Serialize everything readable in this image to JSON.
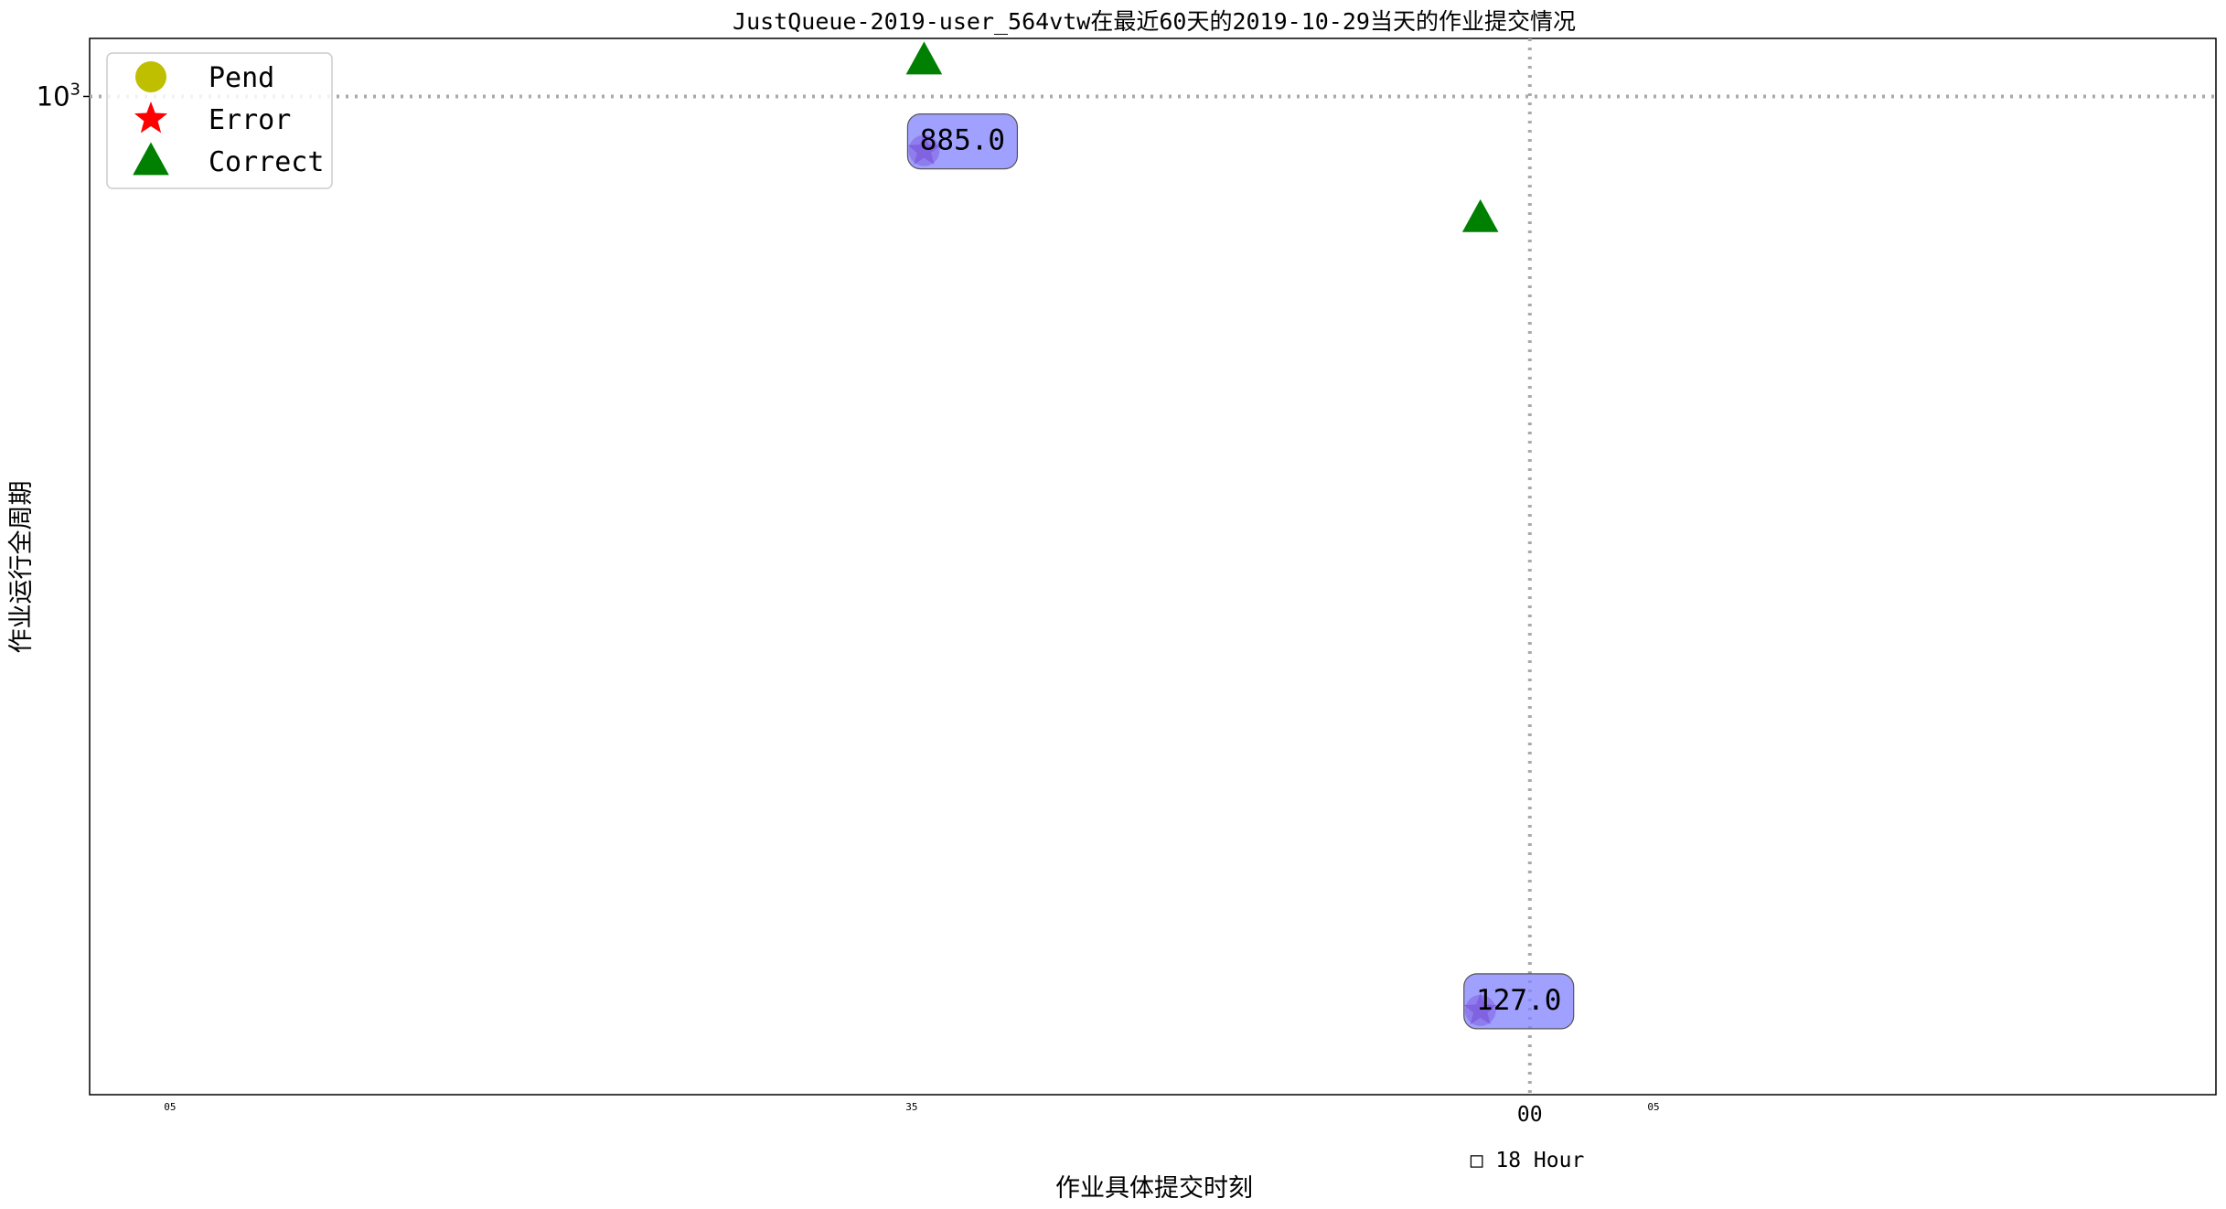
{
  "chart_data": {
    "type": "scatter",
    "title": "JustQueue-2019-user_564vtw在最近60天的2019-10-29当天的作业提交情况",
    "xlabel": "作业具体提交时刻",
    "ylabel": "作业运行全周期",
    "y_scale": "log",
    "ylim": [
      105,
      1140
    ],
    "x_axis_unit_label": "□ 18 Hour",
    "x_ticks": [
      {
        "value": "17:05",
        "label": "05",
        "size": "small"
      },
      {
        "value": "17:35",
        "label": "35",
        "size": "small"
      },
      {
        "value": "18:00",
        "label": "00",
        "size": "large"
      },
      {
        "value": "18:05",
        "label": "05",
        "size": "small"
      }
    ],
    "xlim": [
      "17:01:45",
      "18:27:45"
    ],
    "y_ticks": [
      {
        "value": 1000,
        "label_base": "10",
        "label_exp": "3"
      }
    ],
    "reference_lines": {
      "horizontal_y": 1000,
      "vertical_x": "18:00"
    },
    "grid": false,
    "legend": {
      "position": "top-left",
      "entries": [
        {
          "label": "Pend",
          "marker": "circle",
          "color": "#bfbf00"
        },
        {
          "label": "Error",
          "marker": "star",
          "color": "#ff0000"
        },
        {
          "label": "Correct",
          "marker": "triangle",
          "color": "#008000"
        }
      ]
    },
    "series": [
      {
        "name": "Pend",
        "marker": "circle",
        "color": "#bfbf00",
        "points": [
          {
            "x": "17:35:30",
            "y": 885
          },
          {
            "x": "17:58:00",
            "y": 127
          }
        ]
      },
      {
        "name": "Error",
        "marker": "star",
        "color": "#ff0000",
        "points": [
          {
            "x": "17:35:30",
            "y": 885
          },
          {
            "x": "17:58:00",
            "y": 127
          }
        ]
      },
      {
        "name": "Correct",
        "marker": "triangle",
        "color": "#008000",
        "points": [
          {
            "x": "17:35:30",
            "y": 1085
          },
          {
            "x": "17:58:00",
            "y": 760
          }
        ]
      }
    ],
    "annotations": [
      {
        "text": "885.0",
        "x": "17:35:30",
        "y": 885
      },
      {
        "text": "127.0",
        "x": "17:58:00",
        "y": 127
      }
    ],
    "colors": {
      "annotation_box": "#8080ff",
      "overlap_marker": "#800080",
      "reference_line": "#aaaaaa"
    }
  }
}
